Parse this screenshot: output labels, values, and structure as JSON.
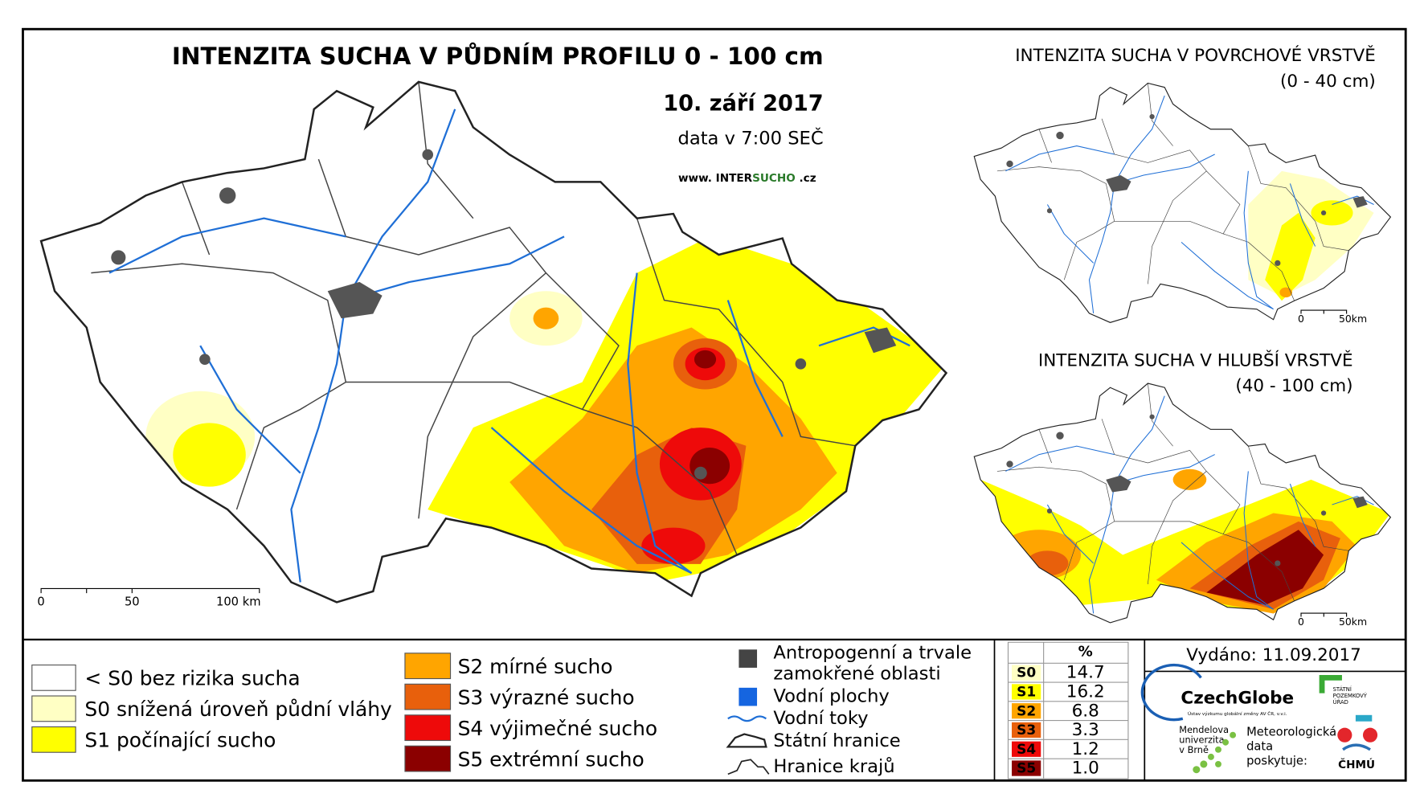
{
  "main_map": {
    "title": "INTENZITA SUCHA V PŮDNÍM PROFILU 0 - 100 cm",
    "date": "10. září 2017",
    "data_time": "data v 7:00 SEČ",
    "website": [
      "www. INTER",
      "SUCHO",
      " .cz"
    ],
    "scale": [
      "0",
      "50",
      "100 km"
    ]
  },
  "insets": [
    {
      "title": "INTENZITA SUCHA V POVRCHOVÉ VRSTVĚ",
      "subtitle": "(0 - 40 cm)",
      "scale": [
        "0",
        "50km"
      ]
    },
    {
      "title": "INTENZITA SUCHA V HLUBŠÍ VRSTVĚ",
      "subtitle": "(40 - 100 cm)",
      "scale": [
        "0",
        "50km"
      ]
    }
  ],
  "legend": {
    "classes_left": [
      {
        "label": "< S0 bez rizika sucha",
        "color": "#ffffff"
      },
      {
        "label": "S0 snížená úroveň půdní vláhy",
        "color": "#ffffc4"
      },
      {
        "label": "S1 počínající sucho",
        "color": "#ffff00"
      }
    ],
    "classes_right": [
      {
        "label": "S2 mírné sucho",
        "color": "#ffa500"
      },
      {
        "label": "S3 výrazné sucho",
        "color": "#e8600c"
      },
      {
        "label": "S4 výjimečné sucho",
        "color": "#ee0a0a"
      },
      {
        "label": "S5 extrémní sucho",
        "color": "#8b0000"
      }
    ],
    "other": [
      {
        "label": [
          "Antropogenní a trvale",
          "zamokřené oblasti"
        ],
        "kind": "urban"
      },
      {
        "label": [
          "Vodní plochy"
        ],
        "kind": "water"
      },
      {
        "label": [
          "Vodní toky"
        ],
        "kind": "river"
      },
      {
        "label": [
          "Státní hranice"
        ],
        "kind": "border"
      },
      {
        "label": [
          "Hranice krajů"
        ],
        "kind": "region"
      }
    ]
  },
  "table": {
    "header": "%",
    "rows": [
      {
        "class": "S0",
        "value": "14.7",
        "color": "#ffffc4"
      },
      {
        "class": "S1",
        "value": "16.2",
        "color": "#ffff00"
      },
      {
        "class": "S2",
        "value": "6.8",
        "color": "#ffa500"
      },
      {
        "class": "S3",
        "value": "3.3",
        "color": "#e8600c"
      },
      {
        "class": "S4",
        "value": "1.2",
        "color": "#ee0a0a"
      },
      {
        "class": "S5",
        "value": "1.0",
        "color": "#8b0000"
      }
    ]
  },
  "issued": "Vydáno: 11.09.2017",
  "logos": {
    "czechglobe": "CzechGlobe",
    "czechglobe_sub": "Ústav výzkumu globální změny AV ČR, v.v.i.",
    "mendelu": [
      "Mendelova",
      "univerzita",
      "v Brně"
    ],
    "spu": [
      "STÁTNÍ",
      "POZEMKOVÝ",
      "ÚŘAD"
    ],
    "meteo": [
      "Meteorologická",
      "data",
      "poskytuje:"
    ],
    "chmu": "ČHMÚ"
  }
}
